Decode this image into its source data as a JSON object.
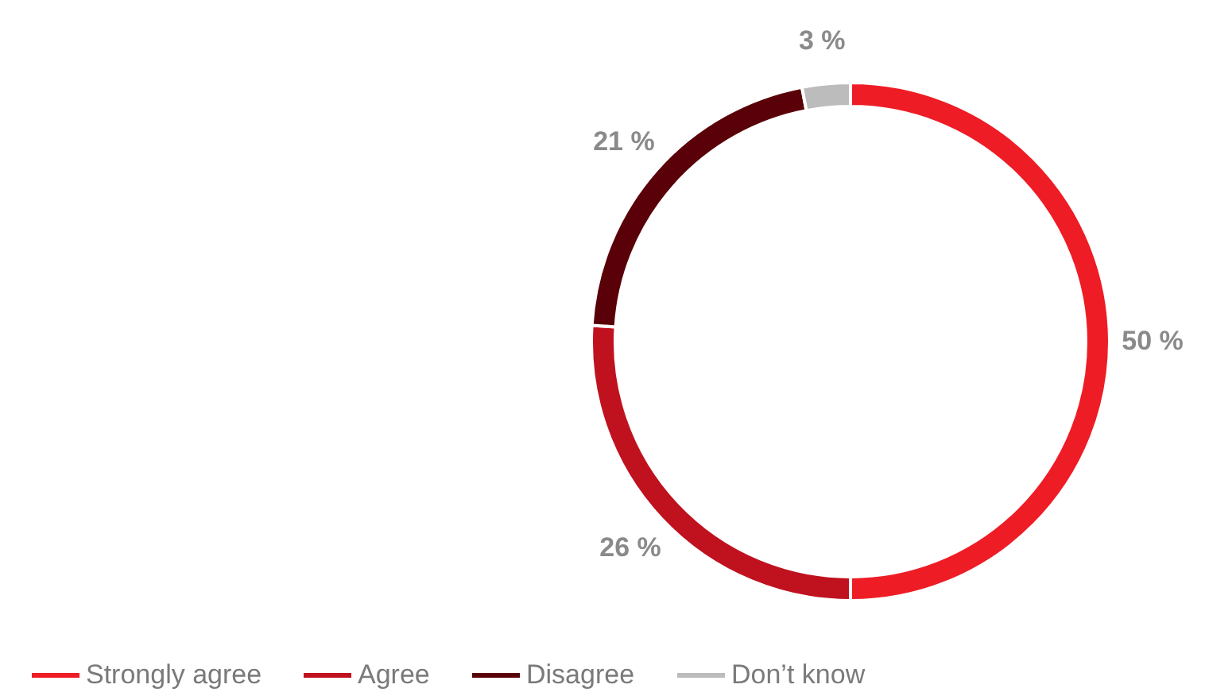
{
  "chart_data": {
    "type": "donut",
    "categories": [
      "Strongly agree",
      "Agree",
      "Disagree",
      "Don’t know"
    ],
    "values": [
      50,
      26,
      21,
      3
    ],
    "colors": [
      "#ee1c25",
      "#c0111f",
      "#5a0008",
      "#bcbcbc"
    ],
    "value_labels": [
      "50 %",
      "26 %",
      "21 %",
      "3 %"
    ],
    "legend": "bottom"
  }
}
